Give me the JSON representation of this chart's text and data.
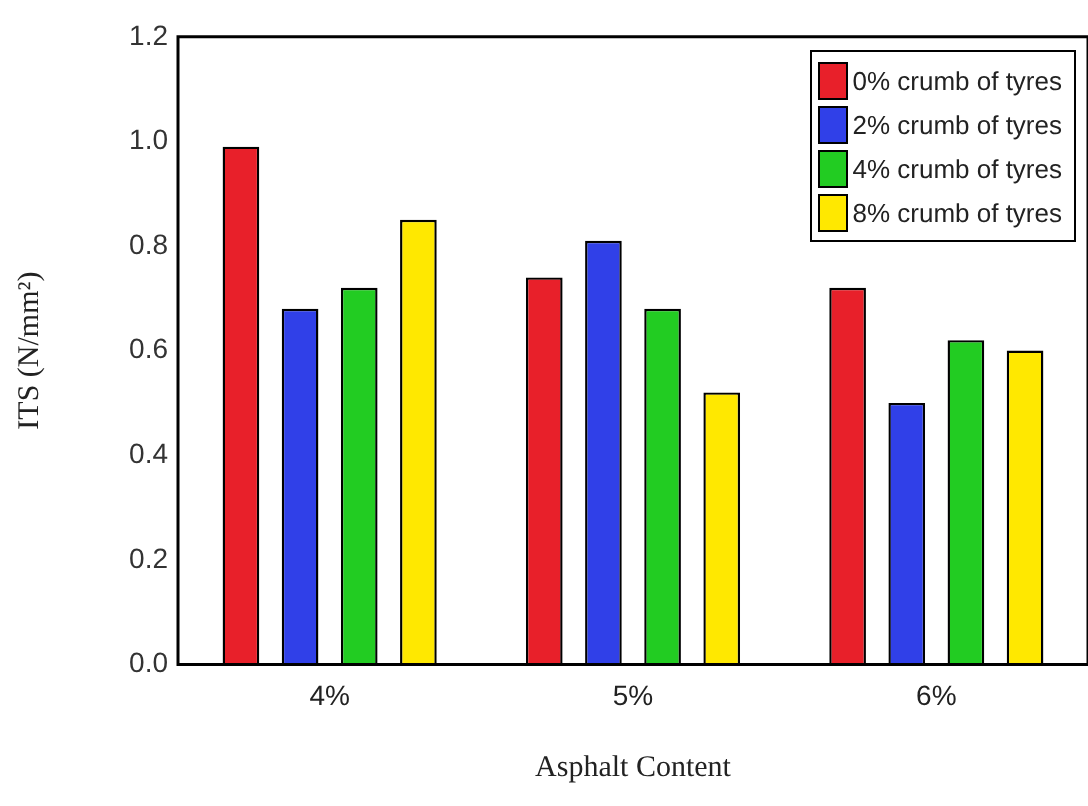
{
  "chart_data": {
    "type": "bar",
    "xlabel": "Asphalt Content",
    "ylabel": "ITS (N/mm²)",
    "categories": [
      "4%",
      "5%",
      "6%"
    ],
    "series": [
      {
        "name": "0% crumb of tyres",
        "color": "#e8202a",
        "values": [
          0.99,
          0.74,
          0.72
        ]
      },
      {
        "name": "2% crumb of tyres",
        "color": "#3040e8",
        "values": [
          0.68,
          0.81,
          0.5
        ]
      },
      {
        "name": "4% crumb of tyres",
        "color": "#22cc22",
        "values": [
          0.72,
          0.68,
          0.62
        ]
      },
      {
        "name": "8% crumb of tyres",
        "color": "#ffe800",
        "values": [
          0.85,
          0.52,
          0.6
        ]
      }
    ],
    "ylim": [
      0,
      1.2
    ],
    "yticks": [
      {
        "value": 0,
        "label": "0.0"
      },
      {
        "value": 0.2,
        "label": "0.2"
      },
      {
        "value": 0.4,
        "label": "0.4"
      },
      {
        "value": 0.6,
        "label": "0.6"
      },
      {
        "value": 0.8,
        "label": "0.8"
      },
      {
        "value": 1,
        "label": "1.0"
      },
      {
        "value": 1.2,
        "label": "1.2"
      }
    ],
    "grid": false,
    "legend": "top right"
  }
}
